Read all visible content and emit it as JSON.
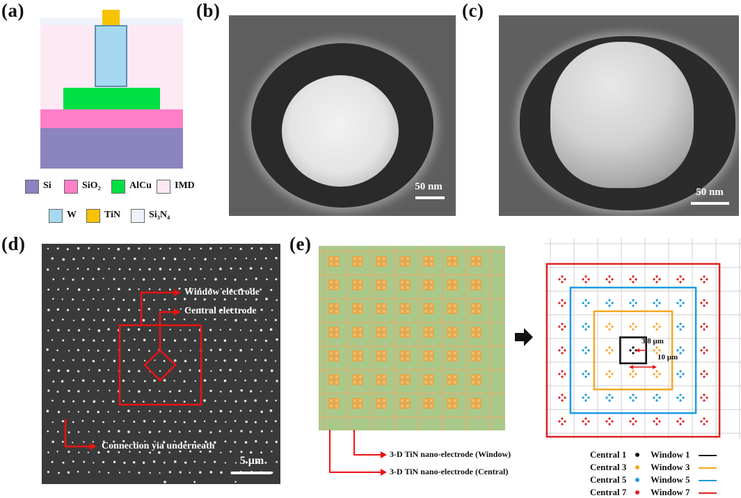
{
  "panels": {
    "a": "(a)",
    "b": "(b)",
    "c": "(c)",
    "d": "(d)",
    "e": "(e)"
  },
  "panel_a": {
    "legend": [
      {
        "label": "Si",
        "color": "#8b84bf"
      },
      {
        "label": "SiO₂",
        "color": "#ff7fc8"
      },
      {
        "label": "AlCu",
        "color": "#00e045"
      },
      {
        "label": "IMD",
        "color": "#fde9f3"
      },
      {
        "label": "W",
        "color": "#a6d8f0"
      },
      {
        "label": "TiN",
        "color": "#f7c200"
      },
      {
        "label": "Si₃N₄",
        "color": "#eef2fb"
      }
    ]
  },
  "panel_b": {
    "scale": "50 nm"
  },
  "panel_c": {
    "scale": "50 nm"
  },
  "panel_d": {
    "window_label": "Window electrode",
    "central_label": "Central electrode",
    "connection_label": "Connection yia underneath",
    "scale": "5 μm"
  },
  "panel_e": {
    "window_label": "3-D TiN nano-electrode (Window)",
    "central_label": "3-D TiN nano-electrode (Central)",
    "dim_small": "3.8 μm",
    "dim_large": "10 μm",
    "legend_central": [
      {
        "label": "Central 1",
        "color": "#111111"
      },
      {
        "label": "Central 3",
        "color": "#f5a623"
      },
      {
        "label": "Central 5",
        "color": "#1b9be0"
      },
      {
        "label": "Central 7",
        "color": "#e02020"
      }
    ],
    "legend_window": [
      {
        "label": "Window 1",
        "color": "#111111"
      },
      {
        "label": "Window 3",
        "color": "#f5a623"
      },
      {
        "label": "Window 5",
        "color": "#1b9be0"
      },
      {
        "label": "Window 7",
        "color": "#e02020"
      }
    ]
  }
}
